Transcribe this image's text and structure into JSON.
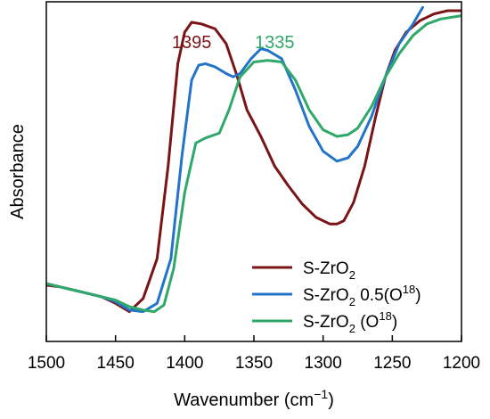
{
  "chart_data": {
    "type": "line",
    "title": "",
    "xlabel": "Wavenumber (cm",
    "xlabel_sup": "−1",
    "xlabel_end": ")",
    "ylabel": "Absorbance",
    "xlim": [
      1500,
      1200
    ],
    "ylim": [
      0,
      1
    ],
    "x_reversed": true,
    "y_ticks_shown": false,
    "x_ticks": [
      "1500",
      "1450",
      "1400",
      "1350",
      "1300",
      "1250",
      "1200"
    ],
    "grid": false,
    "legend_position": "bottom-right",
    "annotations": [
      {
        "text": "1395",
        "x": 1395,
        "y": 0.9,
        "color": "#7b1416"
      },
      {
        "text": "1335",
        "x": 1335,
        "y": 0.9,
        "color": "#2fa86a"
      }
    ],
    "series": [
      {
        "name": "S-ZrO",
        "name_sub": "2",
        "name_rest": "",
        "name_sup": "",
        "name_end": "",
        "color": "#7b1416",
        "points": [
          [
            1500,
            0.17
          ],
          [
            1490,
            0.165
          ],
          [
            1480,
            0.155
          ],
          [
            1470,
            0.145
          ],
          [
            1460,
            0.135
          ],
          [
            1450,
            0.115
          ],
          [
            1440,
            0.09
          ],
          [
            1430,
            0.13
          ],
          [
            1420,
            0.25
          ],
          [
            1412,
            0.53
          ],
          [
            1405,
            0.84
          ],
          [
            1400,
            0.935
          ],
          [
            1395,
            0.965
          ],
          [
            1388,
            0.96
          ],
          [
            1378,
            0.945
          ],
          [
            1370,
            0.9
          ],
          [
            1362,
            0.8
          ],
          [
            1355,
            0.7
          ],
          [
            1345,
            0.62
          ],
          [
            1335,
            0.53
          ],
          [
            1325,
            0.47
          ],
          [
            1315,
            0.415
          ],
          [
            1305,
            0.375
          ],
          [
            1295,
            0.355
          ],
          [
            1290,
            0.355
          ],
          [
            1285,
            0.365
          ],
          [
            1278,
            0.42
          ],
          [
            1270,
            0.53
          ],
          [
            1262,
            0.68
          ],
          [
            1255,
            0.8
          ],
          [
            1248,
            0.88
          ],
          [
            1240,
            0.935
          ],
          [
            1230,
            0.97
          ],
          [
            1220,
            0.99
          ],
          [
            1210,
            1.0
          ],
          [
            1200,
            1.0
          ]
        ]
      },
      {
        "name": "S-ZrO",
        "name_sub": "2",
        "name_rest": " 0.5(O",
        "name_sup": "18",
        "name_end": ")",
        "color": "#2374c9",
        "points": [
          [
            1500,
            0.175
          ],
          [
            1490,
            0.165
          ],
          [
            1480,
            0.155
          ],
          [
            1470,
            0.145
          ],
          [
            1460,
            0.135
          ],
          [
            1450,
            0.12
          ],
          [
            1440,
            0.095
          ],
          [
            1430,
            0.09
          ],
          [
            1420,
            0.115
          ],
          [
            1410,
            0.25
          ],
          [
            1402,
            0.56
          ],
          [
            1395,
            0.79
          ],
          [
            1390,
            0.835
          ],
          [
            1385,
            0.84
          ],
          [
            1378,
            0.83
          ],
          [
            1370,
            0.81
          ],
          [
            1365,
            0.8
          ],
          [
            1360,
            0.81
          ],
          [
            1352,
            0.855
          ],
          [
            1345,
            0.885
          ],
          [
            1340,
            0.88
          ],
          [
            1330,
            0.855
          ],
          [
            1320,
            0.76
          ],
          [
            1310,
            0.65
          ],
          [
            1300,
            0.575
          ],
          [
            1290,
            0.545
          ],
          [
            1282,
            0.555
          ],
          [
            1275,
            0.59
          ],
          [
            1265,
            0.68
          ],
          [
            1255,
            0.8
          ],
          [
            1245,
            0.9
          ],
          [
            1235,
            0.96
          ],
          [
            1228,
            1.01
          ]
        ]
      },
      {
        "name": "S-ZrO",
        "name_sub": "2",
        "name_rest": " (O",
        "name_sup": "18",
        "name_end": ")",
        "color": "#2fa86a",
        "points": [
          [
            1500,
            0.175
          ],
          [
            1490,
            0.165
          ],
          [
            1480,
            0.155
          ],
          [
            1470,
            0.145
          ],
          [
            1460,
            0.135
          ],
          [
            1450,
            0.125
          ],
          [
            1440,
            0.105
          ],
          [
            1430,
            0.095
          ],
          [
            1422,
            0.09
          ],
          [
            1415,
            0.11
          ],
          [
            1408,
            0.22
          ],
          [
            1400,
            0.45
          ],
          [
            1392,
            0.6
          ],
          [
            1385,
            0.615
          ],
          [
            1375,
            0.63
          ],
          [
            1368,
            0.7
          ],
          [
            1360,
            0.8
          ],
          [
            1350,
            0.845
          ],
          [
            1340,
            0.85
          ],
          [
            1330,
            0.845
          ],
          [
            1320,
            0.79
          ],
          [
            1310,
            0.7
          ],
          [
            1300,
            0.64
          ],
          [
            1290,
            0.62
          ],
          [
            1282,
            0.625
          ],
          [
            1275,
            0.645
          ],
          [
            1265,
            0.71
          ],
          [
            1255,
            0.8
          ],
          [
            1245,
            0.87
          ],
          [
            1235,
            0.925
          ],
          [
            1225,
            0.96
          ],
          [
            1215,
            0.975
          ],
          [
            1200,
            0.985
          ]
        ]
      }
    ]
  }
}
